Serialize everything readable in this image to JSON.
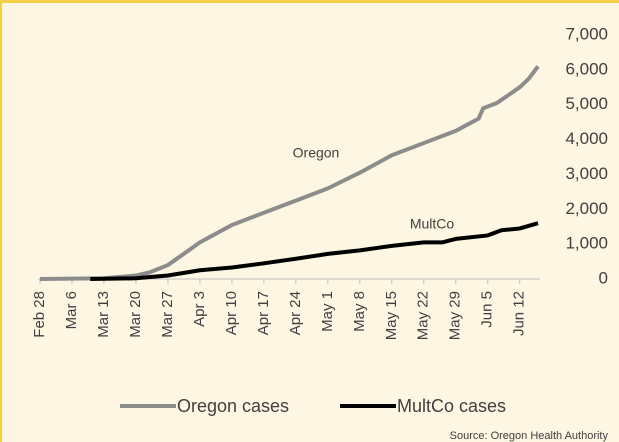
{
  "chart_data": {
    "type": "line",
    "source": "Source: Oregon Health Authority",
    "annotations": [
      "Oregon",
      "MultCo"
    ],
    "xlim": [
      0,
      109
    ],
    "xticks": [
      {
        "value": 0,
        "label": "Feb 28"
      },
      {
        "value": 7,
        "label": "Mar 6"
      },
      {
        "value": 14,
        "label": "Mar 13"
      },
      {
        "value": 21,
        "label": "Mar 20"
      },
      {
        "value": 28,
        "label": "Mar 27"
      },
      {
        "value": 35,
        "label": "Apr 3"
      },
      {
        "value": 42,
        "label": "Apr 10"
      },
      {
        "value": 49,
        "label": "Apr 17"
      },
      {
        "value": 56,
        "label": "Apr 24"
      },
      {
        "value": 63,
        "label": "May 1"
      },
      {
        "value": 70,
        "label": "May 8"
      },
      {
        "value": 77,
        "label": "May 15"
      },
      {
        "value": 84,
        "label": "May 22"
      },
      {
        "value": 91,
        "label": "May 29"
      },
      {
        "value": 98,
        "label": "Jun 5"
      },
      {
        "value": 105,
        "label": "Jun 12"
      }
    ],
    "ylim": [
      0,
      7000
    ],
    "yticks": [
      0,
      {
        "value": 1000,
        "label": "1,000"
      },
      {
        "value": 2000,
        "label": "2,000"
      },
      {
        "value": 3000,
        "label": "3,000"
      },
      {
        "value": 4000,
        "label": "4,000"
      },
      {
        "value": 5000,
        "label": "5,000"
      },
      {
        "value": 6000,
        "label": "6,000"
      },
      {
        "value": 7000,
        "label": "7,000"
      }
    ],
    "series": [
      {
        "name": "Oregon cases",
        "color": "#8c8c8c",
        "x": [
          0,
          14,
          21,
          24,
          28,
          35,
          42,
          49,
          56,
          63,
          70,
          77,
          84,
          91,
          96,
          97,
          100,
          105,
          107,
          109
        ],
        "values": [
          0,
          20,
          100,
          190,
          400,
          1050,
          1550,
          1900,
          2250,
          2600,
          3050,
          3550,
          3900,
          4250,
          4600,
          4900,
          5050,
          5500,
          5750,
          6100
        ]
      },
      {
        "name": "MultCo cases",
        "color": "#000000",
        "x": [
          11,
          21,
          28,
          35,
          42,
          49,
          56,
          63,
          70,
          77,
          84,
          88,
          91,
          98,
          101,
          105,
          109
        ],
        "values": [
          0,
          20,
          100,
          250,
          330,
          450,
          580,
          720,
          820,
          950,
          1050,
          1050,
          1150,
          1250,
          1400,
          1450,
          1600
        ]
      }
    ]
  }
}
